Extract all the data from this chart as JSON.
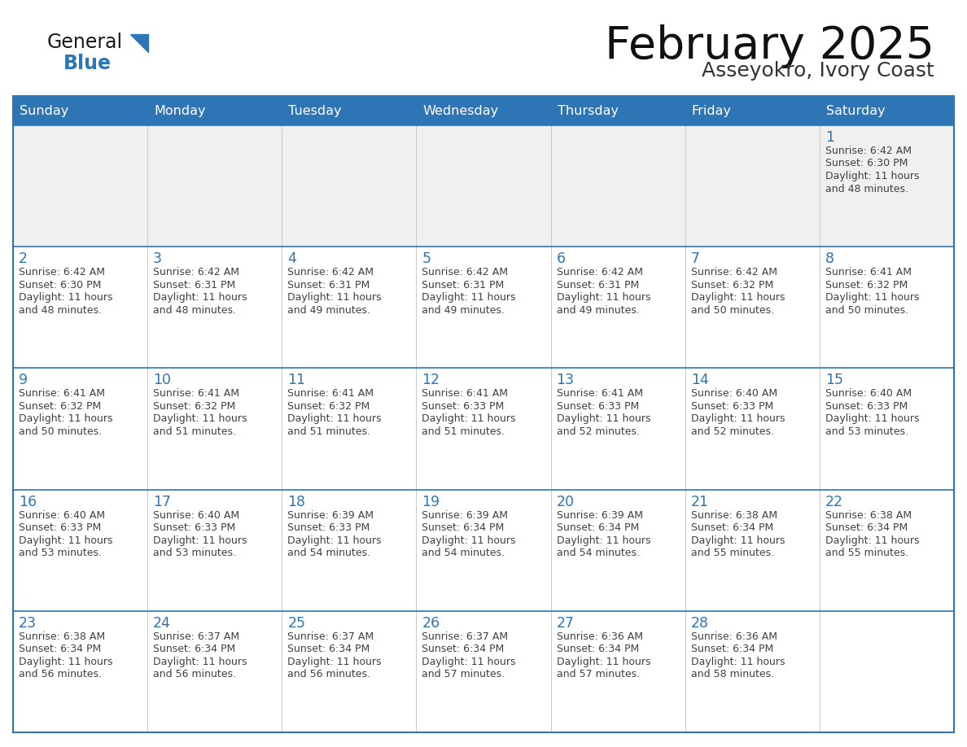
{
  "title": "February 2025",
  "subtitle": "Asseyokro, Ivory Coast",
  "days_of_week": [
    "Sunday",
    "Monday",
    "Tuesday",
    "Wednesday",
    "Thursday",
    "Friday",
    "Saturday"
  ],
  "header_bg": "#2e75b6",
  "header_text": "#ffffff",
  "cell_bg_white": "#ffffff",
  "cell_bg_gray": "#f0f0f0",
  "border_color": "#2e75b6",
  "row_line_color": "#2e75b6",
  "day_num_color": "#2e75b6",
  "text_color": "#404040",
  "logo_general_color": "#1a1a1a",
  "logo_blue_color": "#2e75b6",
  "calendar": [
    [
      null,
      null,
      null,
      null,
      null,
      null,
      {
        "day": 1,
        "sunrise": "6:42 AM",
        "sunset": "6:30 PM",
        "daylight": "11 hours",
        "daylight2": "and 48 minutes."
      }
    ],
    [
      {
        "day": 2,
        "sunrise": "6:42 AM",
        "sunset": "6:30 PM",
        "daylight": "11 hours",
        "daylight2": "and 48 minutes."
      },
      {
        "day": 3,
        "sunrise": "6:42 AM",
        "sunset": "6:31 PM",
        "daylight": "11 hours",
        "daylight2": "and 48 minutes."
      },
      {
        "day": 4,
        "sunrise": "6:42 AM",
        "sunset": "6:31 PM",
        "daylight": "11 hours",
        "daylight2": "and 49 minutes."
      },
      {
        "day": 5,
        "sunrise": "6:42 AM",
        "sunset": "6:31 PM",
        "daylight": "11 hours",
        "daylight2": "and 49 minutes."
      },
      {
        "day": 6,
        "sunrise": "6:42 AM",
        "sunset": "6:31 PM",
        "daylight": "11 hours",
        "daylight2": "and 49 minutes."
      },
      {
        "day": 7,
        "sunrise": "6:42 AM",
        "sunset": "6:32 PM",
        "daylight": "11 hours",
        "daylight2": "and 50 minutes."
      },
      {
        "day": 8,
        "sunrise": "6:41 AM",
        "sunset": "6:32 PM",
        "daylight": "11 hours",
        "daylight2": "and 50 minutes."
      }
    ],
    [
      {
        "day": 9,
        "sunrise": "6:41 AM",
        "sunset": "6:32 PM",
        "daylight": "11 hours",
        "daylight2": "and 50 minutes."
      },
      {
        "day": 10,
        "sunrise": "6:41 AM",
        "sunset": "6:32 PM",
        "daylight": "11 hours",
        "daylight2": "and 51 minutes."
      },
      {
        "day": 11,
        "sunrise": "6:41 AM",
        "sunset": "6:32 PM",
        "daylight": "11 hours",
        "daylight2": "and 51 minutes."
      },
      {
        "day": 12,
        "sunrise": "6:41 AM",
        "sunset": "6:33 PM",
        "daylight": "11 hours",
        "daylight2": "and 51 minutes."
      },
      {
        "day": 13,
        "sunrise": "6:41 AM",
        "sunset": "6:33 PM",
        "daylight": "11 hours",
        "daylight2": "and 52 minutes."
      },
      {
        "day": 14,
        "sunrise": "6:40 AM",
        "sunset": "6:33 PM",
        "daylight": "11 hours",
        "daylight2": "and 52 minutes."
      },
      {
        "day": 15,
        "sunrise": "6:40 AM",
        "sunset": "6:33 PM",
        "daylight": "11 hours",
        "daylight2": "and 53 minutes."
      }
    ],
    [
      {
        "day": 16,
        "sunrise": "6:40 AM",
        "sunset": "6:33 PM",
        "daylight": "11 hours",
        "daylight2": "and 53 minutes."
      },
      {
        "day": 17,
        "sunrise": "6:40 AM",
        "sunset": "6:33 PM",
        "daylight": "11 hours",
        "daylight2": "and 53 minutes."
      },
      {
        "day": 18,
        "sunrise": "6:39 AM",
        "sunset": "6:33 PM",
        "daylight": "11 hours",
        "daylight2": "and 54 minutes."
      },
      {
        "day": 19,
        "sunrise": "6:39 AM",
        "sunset": "6:34 PM",
        "daylight": "11 hours",
        "daylight2": "and 54 minutes."
      },
      {
        "day": 20,
        "sunrise": "6:39 AM",
        "sunset": "6:34 PM",
        "daylight": "11 hours",
        "daylight2": "and 54 minutes."
      },
      {
        "day": 21,
        "sunrise": "6:38 AM",
        "sunset": "6:34 PM",
        "daylight": "11 hours",
        "daylight2": "and 55 minutes."
      },
      {
        "day": 22,
        "sunrise": "6:38 AM",
        "sunset": "6:34 PM",
        "daylight": "11 hours",
        "daylight2": "and 55 minutes."
      }
    ],
    [
      {
        "day": 23,
        "sunrise": "6:38 AM",
        "sunset": "6:34 PM",
        "daylight": "11 hours",
        "daylight2": "and 56 minutes."
      },
      {
        "day": 24,
        "sunrise": "6:37 AM",
        "sunset": "6:34 PM",
        "daylight": "11 hours",
        "daylight2": "and 56 minutes."
      },
      {
        "day": 25,
        "sunrise": "6:37 AM",
        "sunset": "6:34 PM",
        "daylight": "11 hours",
        "daylight2": "and 56 minutes."
      },
      {
        "day": 26,
        "sunrise": "6:37 AM",
        "sunset": "6:34 PM",
        "daylight": "11 hours",
        "daylight2": "and 57 minutes."
      },
      {
        "day": 27,
        "sunrise": "6:36 AM",
        "sunset": "6:34 PM",
        "daylight": "11 hours",
        "daylight2": "and 57 minutes."
      },
      {
        "day": 28,
        "sunrise": "6:36 AM",
        "sunset": "6:34 PM",
        "daylight": "11 hours",
        "daylight2": "and 58 minutes."
      },
      null
    ]
  ]
}
